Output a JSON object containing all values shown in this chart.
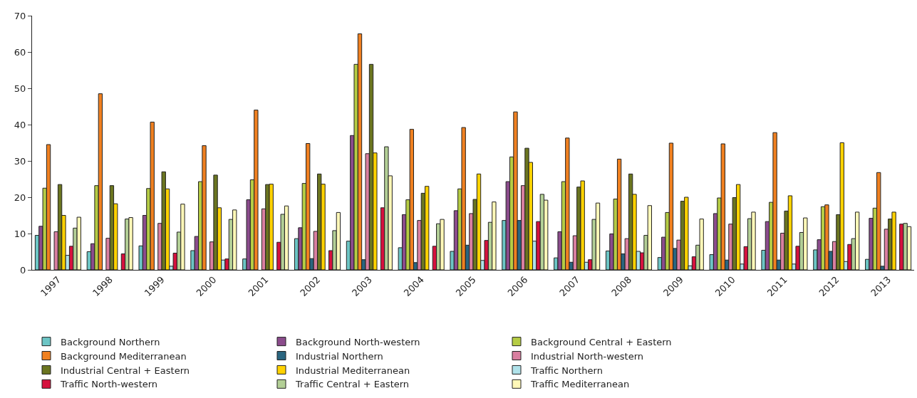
{
  "chart_data": {
    "type": "bar",
    "categories": [
      "1997",
      "1998",
      "1999",
      "2000",
      "2001",
      "2002",
      "2003",
      "2004",
      "2005",
      "2006",
      "2007",
      "2008",
      "2009",
      "2010",
      "2011",
      "2012",
      "2013"
    ],
    "ylim": [
      0,
      70
    ],
    "yticks": [
      0,
      10,
      20,
      30,
      40,
      50,
      60,
      70
    ],
    "legend": "bottom",
    "series": [
      {
        "name": "Background Northern",
        "color": "#6cc5c5",
        "values": [
          9.5,
          5,
          6.6,
          5.3,
          3.0,
          8.6,
          7.9,
          6.1,
          5.1,
          13.6,
          3.3,
          5.2,
          3.4,
          4.2,
          5.4,
          5.5,
          2.9
        ]
      },
      {
        "name": "Background North-western",
        "color": "#8b4c8c",
        "values": [
          12,
          7.2,
          15,
          9.2,
          19.3,
          11.6,
          37,
          15.2,
          16.3,
          24.3,
          10.5,
          9.9,
          9.0,
          15.5,
          13.3,
          8.3,
          14.2
        ]
      },
      {
        "name": "Background Central + Eastern",
        "color": "#b5cc44",
        "values": [
          22.5,
          23.2,
          22.4,
          24.3,
          24.8,
          23.8,
          56.6,
          19.3,
          22.3,
          31.1,
          24.3,
          19.5,
          15.8,
          19.8,
          18.6,
          17.4,
          17.0
        ]
      },
      {
        "name": "Background Mediterranean",
        "color": "#f08020",
        "values": [
          34.5,
          48.5,
          40.7,
          34.2,
          44.0,
          34.8,
          65,
          38.7,
          39.2,
          43.5,
          36.3,
          30.5,
          34.9,
          34.7,
          37.8,
          17.9,
          26.8
        ]
      },
      {
        "name": "Industrial Northern",
        "color": "#2a6680",
        "values": [
          null,
          null,
          null,
          null,
          null,
          3.1,
          2.8,
          2.0,
          6.8,
          13.6,
          2.1,
          4.4,
          5.9,
          2.7,
          2.7,
          5.1,
          1.0
        ]
      },
      {
        "name": "Industrial North-western",
        "color": "#d97fa0",
        "values": [
          10.5,
          8.7,
          12.8,
          7.7,
          16.8,
          10.6,
          32,
          13.6,
          15.5,
          23.2,
          9.4,
          8.6,
          8.2,
          12.6,
          10.1,
          7.8,
          11.2
        ]
      },
      {
        "name": "Industrial Central + Eastern",
        "color": "#6b7520",
        "values": [
          23.5,
          23.2,
          27,
          26.1,
          23.5,
          26.4,
          56.6,
          21.1,
          19.4,
          33.5,
          22.8,
          26.4,
          18.9,
          19.9,
          16.2,
          15.2,
          14.0
        ]
      },
      {
        "name": "Industrial Mediterranean",
        "color": "#ffd200",
        "values": [
          15,
          18.2,
          22.3,
          17.1,
          23.6,
          23.6,
          32.2,
          23.0,
          26.4,
          29.6,
          24.5,
          20.8,
          20.0,
          23.5,
          20.4,
          35.0,
          15.9
        ]
      },
      {
        "name": "Traffic Northern",
        "color": "#b0e2ea",
        "values": [
          4,
          null,
          1.0,
          2.7,
          null,
          null,
          null,
          null,
          2.6,
          7.9,
          2.1,
          5.1,
          1.1,
          1.6,
          1.6,
          2.3,
          null
        ]
      },
      {
        "name": "Traffic North-western",
        "color": "#d5123e",
        "values": [
          6.5,
          4.4,
          4.6,
          3.0,
          7.6,
          5.3,
          17.1,
          6.5,
          8.1,
          13.3,
          2.8,
          4.7,
          3.6,
          6.4,
          6.5,
          7.0,
          12.6
        ]
      },
      {
        "name": "Traffic Central + Eastern",
        "color": "#b3cf96",
        "values": [
          11.5,
          14,
          10.4,
          13.9,
          15.3,
          10.8,
          33.9,
          12.7,
          13.1,
          20.8,
          13.9,
          9.5,
          6.8,
          14.1,
          10.3,
          8.6,
          12.8
        ]
      },
      {
        "name": "Traffic Mediterranean",
        "color": "#fff8b8",
        "values": [
          14.5,
          14.4,
          18.1,
          16.5,
          17.6,
          15.8,
          25.9,
          13.9,
          18.7,
          19.2,
          18.4,
          17.7,
          14.0,
          15.9,
          14.3,
          15.9,
          11.9
        ]
      }
    ]
  }
}
